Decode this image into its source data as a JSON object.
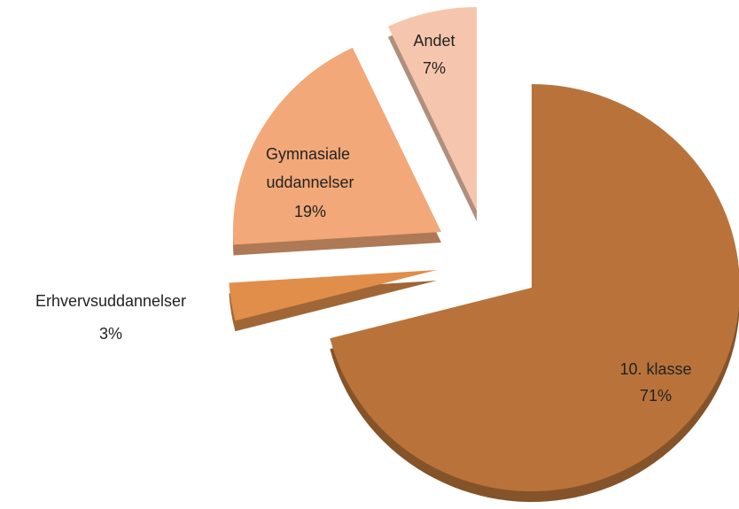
{
  "chart_data": {
    "type": "pie",
    "categories": [
      "10. klasse",
      "Erhvervsuddannelser",
      "Gymnasiale uddannelser",
      "Andet"
    ],
    "values": [
      71,
      3,
      19,
      7
    ],
    "value_labels": [
      "71%",
      "3%",
      "19%",
      "7%"
    ],
    "colors": [
      "#b9733a",
      "#e08e4a",
      "#f2a878",
      "#f5c6ad"
    ]
  }
}
